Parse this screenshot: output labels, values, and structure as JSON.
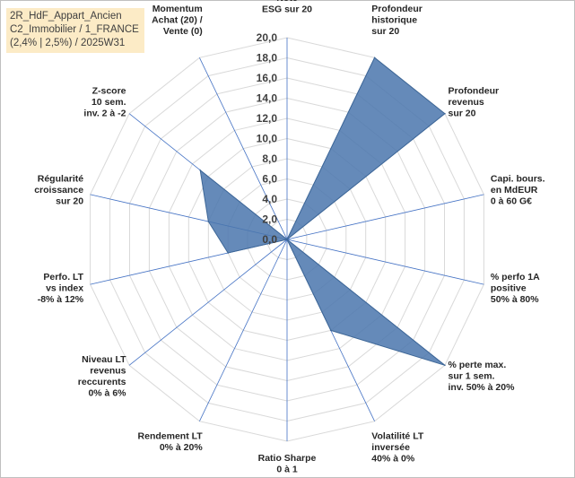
{
  "info_box": {
    "line1": "2R_HdF_Appart_Ancien",
    "line2": "C2_Immobilier / 1_FRANCE",
    "line3": "(2,4% | 2,5%) / 2025W31"
  },
  "colors": {
    "fill": "#4a76ad",
    "stroke": "#3e6797",
    "grid": "#d9d9d9",
    "spoke": "#4472c4"
  },
  "chart_data": {
    "type": "radar",
    "range": [
      0,
      20
    ],
    "ticks": [
      "0,0",
      "2,0",
      "4,0",
      "6,0",
      "8,0",
      "10,0",
      "12,0",
      "14,0",
      "16,0",
      "18,0",
      "20,0"
    ],
    "categories": [
      [
        "Note",
        "ESG sur 20"
      ],
      [
        "Profondeur",
        "historique",
        "sur 20"
      ],
      [
        "Profondeur",
        "revenus",
        "sur 20"
      ],
      [
        "Capi. bours.",
        "en MdEUR",
        "0 à 60 G€"
      ],
      [
        "% perfo 1A",
        "positive",
        "50% à 80%"
      ],
      [
        "% perte max.",
        "sur 1 sem.",
        "inv. 50% à 20%"
      ],
      [
        "Volatilité LT",
        "inversée",
        "40% à 0%"
      ],
      [
        "Ratio Sharpe",
        "0 à 1"
      ],
      [
        "Rendement LT",
        "0% à 20%"
      ],
      [
        "Niveau LT",
        "revenus",
        "reccurents",
        "0% à 6%"
      ],
      [
        "Perfo. LT",
        "vs index",
        "-8% à 12%"
      ],
      [
        "Régularité",
        "croissance",
        "sur 20"
      ],
      [
        "Z-score",
        "10 sem.",
        "inv. 2 à -2"
      ],
      [
        "Momentum",
        "Achat (20) /",
        "Vente (0)"
      ]
    ],
    "values": [
      0,
      20,
      20,
      0,
      0,
      20,
      10,
      0,
      0,
      0,
      6,
      8,
      11,
      0
    ]
  }
}
